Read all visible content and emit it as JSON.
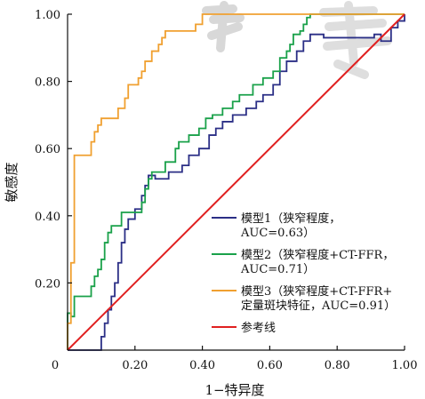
{
  "chart_data": {
    "type": "line",
    "title": "",
    "xlabel": "1−特异度",
    "ylabel": "敏感度",
    "xlim": [
      0,
      1
    ],
    "ylim": [
      0,
      1
    ],
    "x_ticks": [
      "0",
      "0.20",
      "0.40",
      "0.60",
      "0.80",
      "1.00"
    ],
    "y_ticks": [
      "0",
      "0.20",
      "0.40",
      "0.60",
      "0.80",
      "1.00"
    ],
    "grid": false,
    "legend_position": "bottom-right",
    "series": [
      {
        "name": "模型1（狭窄程度，AUC=0.63）",
        "legend_lines": [
          "模型1（狭窄程度，",
          "AUC=0.63）"
        ],
        "color": "#2b2f86",
        "points": [
          [
            0.0,
            0.0
          ],
          [
            0.1,
            0.0
          ],
          [
            0.1,
            0.04
          ],
          [
            0.11,
            0.04
          ],
          [
            0.11,
            0.08
          ],
          [
            0.12,
            0.08
          ],
          [
            0.12,
            0.12
          ],
          [
            0.13,
            0.12
          ],
          [
            0.13,
            0.16
          ],
          [
            0.14,
            0.16
          ],
          [
            0.14,
            0.2
          ],
          [
            0.15,
            0.2
          ],
          [
            0.15,
            0.26
          ],
          [
            0.16,
            0.26
          ],
          [
            0.16,
            0.32
          ],
          [
            0.17,
            0.32
          ],
          [
            0.17,
            0.36
          ],
          [
            0.18,
            0.36
          ],
          [
            0.18,
            0.39
          ],
          [
            0.2,
            0.39
          ],
          [
            0.2,
            0.42
          ],
          [
            0.22,
            0.42
          ],
          [
            0.22,
            0.46
          ],
          [
            0.23,
            0.46
          ],
          [
            0.23,
            0.49
          ],
          [
            0.24,
            0.49
          ],
          [
            0.24,
            0.52
          ],
          [
            0.26,
            0.52
          ],
          [
            0.26,
            0.51
          ],
          [
            0.3,
            0.51
          ],
          [
            0.3,
            0.53
          ],
          [
            0.34,
            0.53
          ],
          [
            0.34,
            0.55
          ],
          [
            0.36,
            0.55
          ],
          [
            0.36,
            0.58
          ],
          [
            0.39,
            0.58
          ],
          [
            0.39,
            0.6
          ],
          [
            0.42,
            0.6
          ],
          [
            0.42,
            0.64
          ],
          [
            0.44,
            0.64
          ],
          [
            0.44,
            0.66
          ],
          [
            0.46,
            0.66
          ],
          [
            0.46,
            0.68
          ],
          [
            0.49,
            0.68
          ],
          [
            0.49,
            0.7
          ],
          [
            0.53,
            0.7
          ],
          [
            0.53,
            0.72
          ],
          [
            0.56,
            0.72
          ],
          [
            0.56,
            0.74
          ],
          [
            0.58,
            0.74
          ],
          [
            0.58,
            0.76
          ],
          [
            0.61,
            0.76
          ],
          [
            0.61,
            0.79
          ],
          [
            0.63,
            0.79
          ],
          [
            0.63,
            0.83
          ],
          [
            0.65,
            0.83
          ],
          [
            0.65,
            0.86
          ],
          [
            0.68,
            0.86
          ],
          [
            0.68,
            0.89
          ],
          [
            0.7,
            0.89
          ],
          [
            0.7,
            0.92
          ],
          [
            0.72,
            0.92
          ],
          [
            0.72,
            0.94
          ],
          [
            0.76,
            0.94
          ],
          [
            0.76,
            0.93
          ],
          [
            0.91,
            0.93
          ],
          [
            0.91,
            0.94
          ],
          [
            0.93,
            0.94
          ],
          [
            0.93,
            0.92
          ],
          [
            0.96,
            0.92
          ],
          [
            0.96,
            0.96
          ],
          [
            0.98,
            0.96
          ],
          [
            0.98,
            0.98
          ],
          [
            1.0,
            0.98
          ],
          [
            1.0,
            1.0
          ]
        ]
      },
      {
        "name": "模型2（狭窄程度+CT-FFR，AUC=0.71）",
        "legend_lines": [
          "模型2（狭窄程度+CT-FFR，",
          "AUC=0.71）"
        ],
        "color": "#1aa14a",
        "points": [
          [
            0.0,
            0.0
          ],
          [
            0.0,
            0.11
          ],
          [
            0.01,
            0.11
          ],
          [
            0.01,
            0.1
          ],
          [
            0.02,
            0.1
          ],
          [
            0.02,
            0.16
          ],
          [
            0.07,
            0.16
          ],
          [
            0.07,
            0.19
          ],
          [
            0.08,
            0.19
          ],
          [
            0.08,
            0.22
          ],
          [
            0.09,
            0.22
          ],
          [
            0.09,
            0.24
          ],
          [
            0.1,
            0.24
          ],
          [
            0.1,
            0.27
          ],
          [
            0.11,
            0.27
          ],
          [
            0.11,
            0.3
          ],
          [
            0.11,
            0.32
          ],
          [
            0.12,
            0.32
          ],
          [
            0.12,
            0.35
          ],
          [
            0.13,
            0.35
          ],
          [
            0.13,
            0.37
          ],
          [
            0.16,
            0.37
          ],
          [
            0.16,
            0.39
          ],
          [
            0.16,
            0.41
          ],
          [
            0.22,
            0.41
          ],
          [
            0.22,
            0.44
          ],
          [
            0.23,
            0.44
          ],
          [
            0.23,
            0.48
          ],
          [
            0.24,
            0.48
          ],
          [
            0.24,
            0.51
          ],
          [
            0.25,
            0.51
          ],
          [
            0.25,
            0.53
          ],
          [
            0.29,
            0.53
          ],
          [
            0.29,
            0.56
          ],
          [
            0.32,
            0.56
          ],
          [
            0.32,
            0.6
          ],
          [
            0.33,
            0.6
          ],
          [
            0.33,
            0.62
          ],
          [
            0.36,
            0.62
          ],
          [
            0.36,
            0.64
          ],
          [
            0.39,
            0.64
          ],
          [
            0.39,
            0.66
          ],
          [
            0.41,
            0.66
          ],
          [
            0.41,
            0.69
          ],
          [
            0.43,
            0.69
          ],
          [
            0.43,
            0.7
          ],
          [
            0.46,
            0.7
          ],
          [
            0.46,
            0.72
          ],
          [
            0.49,
            0.72
          ],
          [
            0.49,
            0.74
          ],
          [
            0.51,
            0.74
          ],
          [
            0.51,
            0.76
          ],
          [
            0.55,
            0.76
          ],
          [
            0.55,
            0.79
          ],
          [
            0.58,
            0.79
          ],
          [
            0.58,
            0.81
          ],
          [
            0.61,
            0.81
          ],
          [
            0.61,
            0.83
          ],
          [
            0.63,
            0.83
          ],
          [
            0.63,
            0.87
          ],
          [
            0.65,
            0.87
          ],
          [
            0.65,
            0.89
          ],
          [
            0.66,
            0.89
          ],
          [
            0.66,
            0.91
          ],
          [
            0.67,
            0.91
          ],
          [
            0.67,
            0.94
          ],
          [
            0.69,
            0.94
          ],
          [
            0.69,
            0.95
          ],
          [
            0.7,
            0.95
          ],
          [
            0.7,
            0.97
          ],
          [
            0.71,
            0.97
          ],
          [
            0.71,
            0.99
          ],
          [
            0.72,
            0.99
          ],
          [
            0.72,
            1.0
          ],
          [
            1.0,
            1.0
          ]
        ]
      },
      {
        "name": "模型3（狭窄程度+CT-FFR+定量斑块特征，AUC=0.91）",
        "legend_lines": [
          "模型3（狭窄程度+CT-FFR+",
          "定量斑块特征，AUC=0.91）"
        ],
        "color": "#f0a030",
        "points": [
          [
            0.0,
            0.0
          ],
          [
            0.0,
            0.08
          ],
          [
            0.01,
            0.08
          ],
          [
            0.01,
            0.26
          ],
          [
            0.02,
            0.26
          ],
          [
            0.02,
            0.33
          ],
          [
            0.02,
            0.58
          ],
          [
            0.07,
            0.58
          ],
          [
            0.07,
            0.62
          ],
          [
            0.08,
            0.62
          ],
          [
            0.08,
            0.65
          ],
          [
            0.09,
            0.65
          ],
          [
            0.09,
            0.67
          ],
          [
            0.1,
            0.67
          ],
          [
            0.1,
            0.69
          ],
          [
            0.15,
            0.69
          ],
          [
            0.15,
            0.72
          ],
          [
            0.17,
            0.72
          ],
          [
            0.17,
            0.75
          ],
          [
            0.18,
            0.75
          ],
          [
            0.18,
            0.79
          ],
          [
            0.21,
            0.79
          ],
          [
            0.21,
            0.81
          ],
          [
            0.22,
            0.81
          ],
          [
            0.22,
            0.83
          ],
          [
            0.23,
            0.83
          ],
          [
            0.23,
            0.86
          ],
          [
            0.25,
            0.86
          ],
          [
            0.25,
            0.89
          ],
          [
            0.27,
            0.89
          ],
          [
            0.27,
            0.91
          ],
          [
            0.28,
            0.91
          ],
          [
            0.28,
            0.93
          ],
          [
            0.29,
            0.93
          ],
          [
            0.29,
            0.95
          ],
          [
            0.38,
            0.95
          ],
          [
            0.38,
            0.97
          ],
          [
            0.4,
            0.97
          ],
          [
            0.4,
            1.0
          ],
          [
            1.0,
            1.0
          ]
        ]
      },
      {
        "name": "参考线",
        "legend_lines": [
          "参考线"
        ],
        "color": "#e02020",
        "points": [
          [
            0.0,
            0.0
          ],
          [
            1.0,
            1.0
          ]
        ]
      }
    ]
  }
}
